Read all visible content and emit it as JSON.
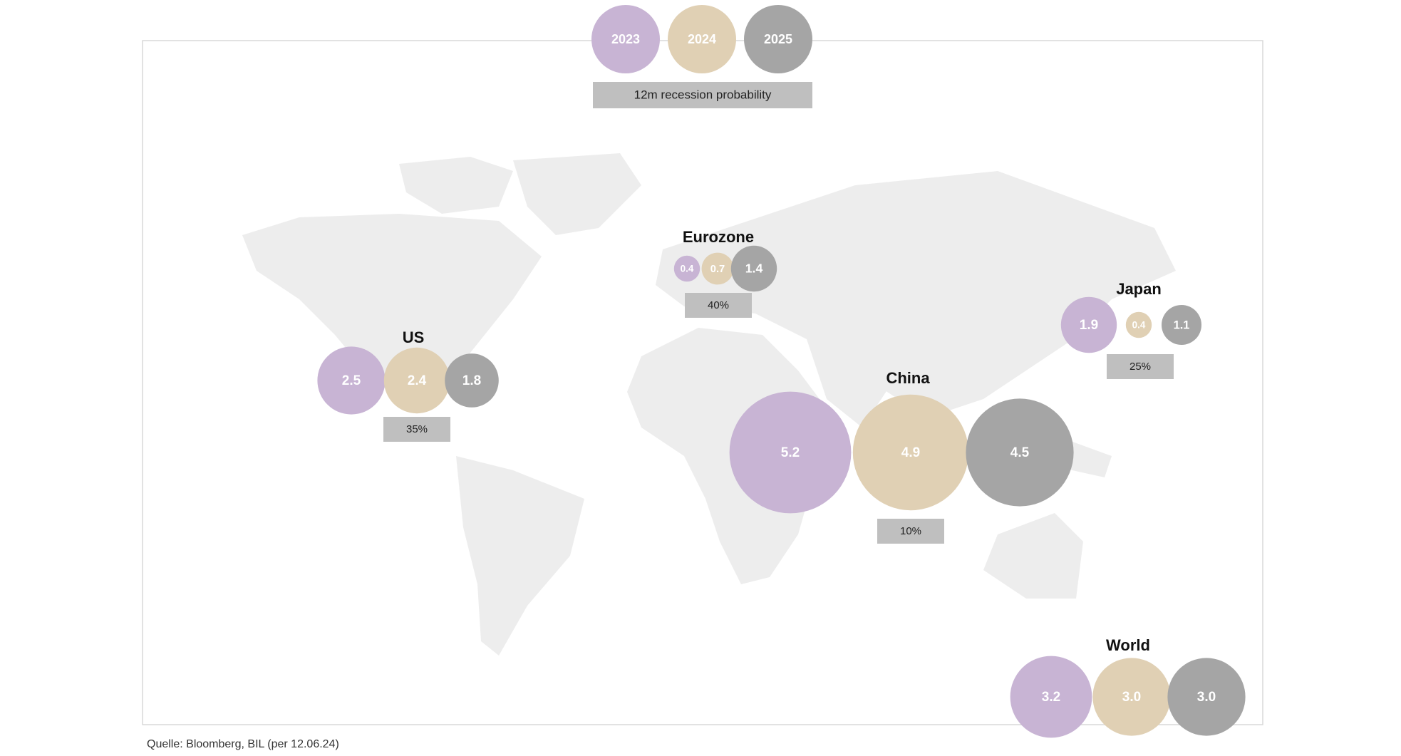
{
  "chart_data": {
    "type": "bubble-map",
    "categories": [
      "US",
      "Eurozone",
      "China",
      "Japan",
      "World"
    ],
    "series": [
      {
        "name": "2023",
        "color": "#c8b4d4",
        "values": [
          2.5,
          0.4,
          5.2,
          1.9,
          3.2
        ],
        "value_labels": [
          "2.5",
          "0.4",
          "5.2",
          "1.9",
          "3.2"
        ]
      },
      {
        "name": "2024",
        "color": "#e0d0b4",
        "values": [
          2.4,
          0.7,
          4.9,
          0.4,
          3.0
        ],
        "value_labels": [
          "2.4",
          "0.7",
          "4.9",
          "0.4",
          "3.0"
        ]
      },
      {
        "name": "2025",
        "color": "#a5a5a5",
        "values": [
          1.8,
          1.4,
          4.5,
          1.1,
          3.0
        ],
        "value_labels": [
          "1.8",
          "1.4",
          "4.5",
          "1.1",
          "3.0"
        ]
      }
    ],
    "recession": {
      "label": "12m recession probability",
      "values": [
        35,
        40,
        10,
        25,
        null
      ],
      "value_labels": [
        "35%",
        "40%",
        "10%",
        "25%",
        null
      ]
    },
    "source": "Quelle: Bloomberg, BIL (per 12.06.24)"
  }
}
